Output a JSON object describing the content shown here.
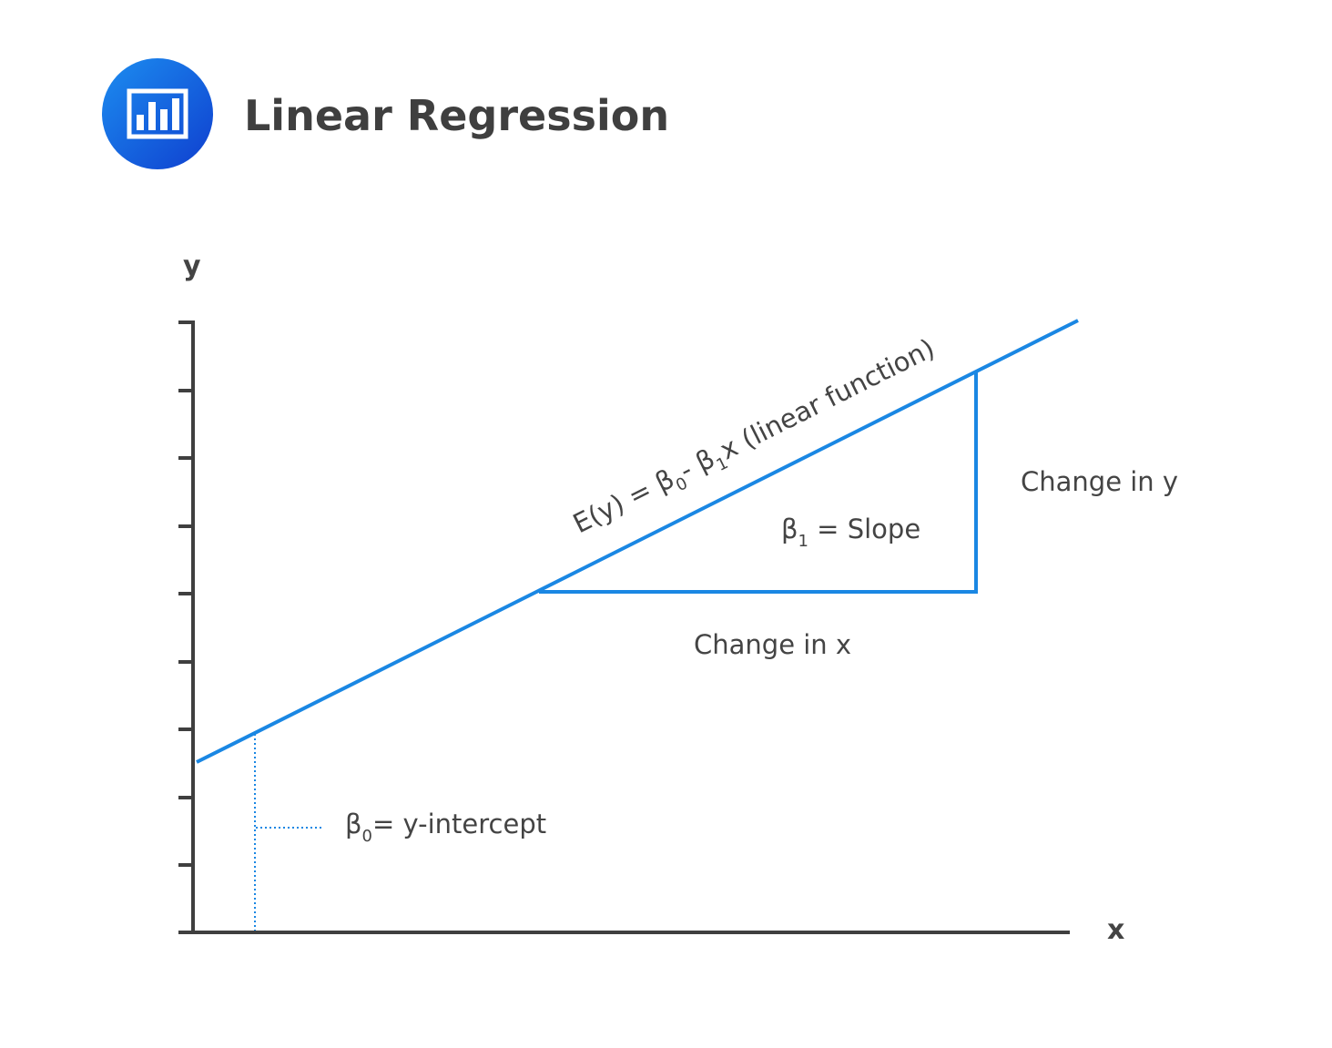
{
  "header": {
    "title": "Linear Regression",
    "icon": "bar-chart-icon"
  },
  "colors": {
    "accent": "#1a87e3",
    "icon_gradient_start": "#1c8df0",
    "icon_gradient_end": "#0f3fcf",
    "axis": "#3f3f3f",
    "text": "#444444"
  },
  "diagram": {
    "y_axis_label": "y",
    "x_axis_label": "x",
    "regression_label": {
      "prefix": "E(y) = β",
      "sub_a": "0",
      "mid": "- β",
      "sub_b": "1",
      "suffix": "x (linear function)"
    },
    "slope_label": {
      "symbol": "β",
      "sub": "1",
      "text": " = Slope"
    },
    "intercept_label": {
      "symbol": "β",
      "sub": "0",
      "text": "= y-intercept"
    },
    "change_in_y": "Change in y",
    "change_in_x": "Change in x"
  }
}
